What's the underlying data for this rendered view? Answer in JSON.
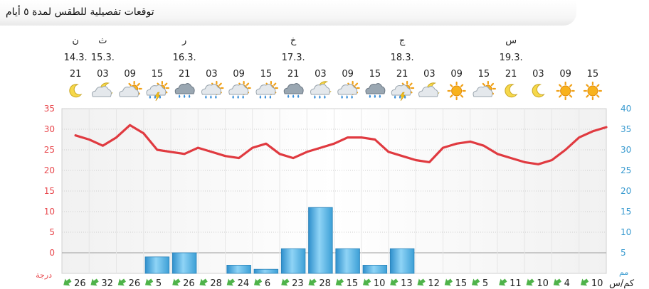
{
  "title": "توقعات تفصيلية للطقس لمدة ٥ أيام",
  "columns": [
    {
      "day": "ن",
      "date": "14.3.",
      "hour": "21",
      "icon": "moon-icon",
      "wind": "26",
      "wind_dir": "SW"
    },
    {
      "day": "ث",
      "date": "15.3.",
      "hour": "03",
      "icon": "moon-cloud-icon",
      "wind": "32",
      "wind_dir": "SW"
    },
    {
      "day": "",
      "date": "",
      "hour": "09",
      "icon": "sun-cloud-icon",
      "wind": "26",
      "wind_dir": "SW"
    },
    {
      "day": "",
      "date": "",
      "hour": "15",
      "icon": "thunder-cloud-icon",
      "wind": "5",
      "wind_dir": "SW"
    },
    {
      "day": "ر",
      "date": "16.3.",
      "hour": "21",
      "icon": "rain-cloud-icon",
      "wind": "26",
      "wind_dir": "SW"
    },
    {
      "day": "",
      "date": "",
      "hour": "03",
      "icon": "sun-rain-cloud-icon",
      "wind": "28",
      "wind_dir": "SW"
    },
    {
      "day": "",
      "date": "",
      "hour": "09",
      "icon": "sun-rain-cloud-icon",
      "wind": "24",
      "wind_dir": "SW"
    },
    {
      "day": "",
      "date": "",
      "hour": "15",
      "icon": "sun-rain-cloud-icon",
      "wind": "6",
      "wind_dir": "SW"
    },
    {
      "day": "خ",
      "date": "17.3.",
      "hour": "21",
      "icon": "rain-cloud-icon",
      "wind": "23",
      "wind_dir": "SW"
    },
    {
      "day": "",
      "date": "",
      "hour": "03",
      "icon": "moon-rain-cloud-icon",
      "wind": "28",
      "wind_dir": "SW"
    },
    {
      "day": "",
      "date": "",
      "hour": "09",
      "icon": "sun-rain-cloud-icon",
      "wind": "15",
      "wind_dir": "SW"
    },
    {
      "day": "",
      "date": "",
      "hour": "15",
      "icon": "rain-cloud-icon",
      "wind": "10",
      "wind_dir": "SW"
    },
    {
      "day": "ج",
      "date": "18.3.",
      "hour": "21",
      "icon": "thunder-cloud-icon",
      "wind": "13",
      "wind_dir": "SW"
    },
    {
      "day": "",
      "date": "",
      "hour": "03",
      "icon": "moon-cloud-icon",
      "wind": "12",
      "wind_dir": "SW"
    },
    {
      "day": "",
      "date": "",
      "hour": "09",
      "icon": "sun-icon",
      "wind": "15",
      "wind_dir": "SW"
    },
    {
      "day": "",
      "date": "",
      "hour": "15",
      "icon": "sun-cloud-icon",
      "wind": "5",
      "wind_dir": "SW"
    },
    {
      "day": "س",
      "date": "19.3.",
      "hour": "21",
      "icon": "moon-icon",
      "wind": "11",
      "wind_dir": "SW"
    },
    {
      "day": "",
      "date": "",
      "hour": "03",
      "icon": "moon-icon",
      "wind": "10",
      "wind_dir": "SW"
    },
    {
      "day": "",
      "date": "",
      "hour": "09",
      "icon": "sun-icon",
      "wind": "4",
      "wind_dir": "SW"
    },
    {
      "day": "",
      "date": "",
      "hour": "15",
      "icon": "sun-icon",
      "wind": "10",
      "wind_dir": "SW"
    }
  ],
  "wind_unit_label": "كم/س",
  "chart_data": {
    "type": "bar",
    "categories": [
      "21",
      "03",
      "09",
      "15",
      "21",
      "03",
      "09",
      "15",
      "21",
      "03",
      "09",
      "15",
      "21",
      "03",
      "09",
      "15",
      "21",
      "03",
      "09",
      "15"
    ],
    "temperature": {
      "values": [
        28.5,
        27.5,
        26,
        28,
        31,
        29,
        25,
        24.5,
        24,
        25.5,
        24.5,
        23.5,
        23,
        25.5,
        26.5,
        24,
        23,
        24.5,
        25.5,
        26.5,
        28,
        28,
        27.5,
        24.5,
        23.5,
        22.5,
        22,
        25.5,
        26.5,
        27,
        26,
        24,
        23,
        22,
        21.5,
        22.5,
        25,
        28,
        29.5,
        30.5
      ],
      "xrange": [
        0,
        19.5
      ],
      "ylim": [
        -5,
        35
      ],
      "ticks": [
        35,
        30,
        25,
        20,
        15,
        10,
        5,
        0
      ],
      "unit": "درجة",
      "color": "#e03a40"
    },
    "precipitation": {
      "values": [
        0,
        0,
        0,
        4,
        5,
        0,
        2,
        1,
        6,
        16,
        6,
        2,
        6,
        0,
        0,
        0,
        0,
        0,
        0,
        0
      ],
      "ylim": [
        0,
        40
      ],
      "ticks": [
        40,
        35,
        30,
        25,
        20,
        15,
        10,
        5
      ],
      "unit": "مم",
      "color": "#5ab4e4"
    }
  },
  "colors": {
    "left_axis": "#e8474c",
    "right_axis": "#3a9bd0",
    "wind_arrow": "#4fb34a"
  }
}
